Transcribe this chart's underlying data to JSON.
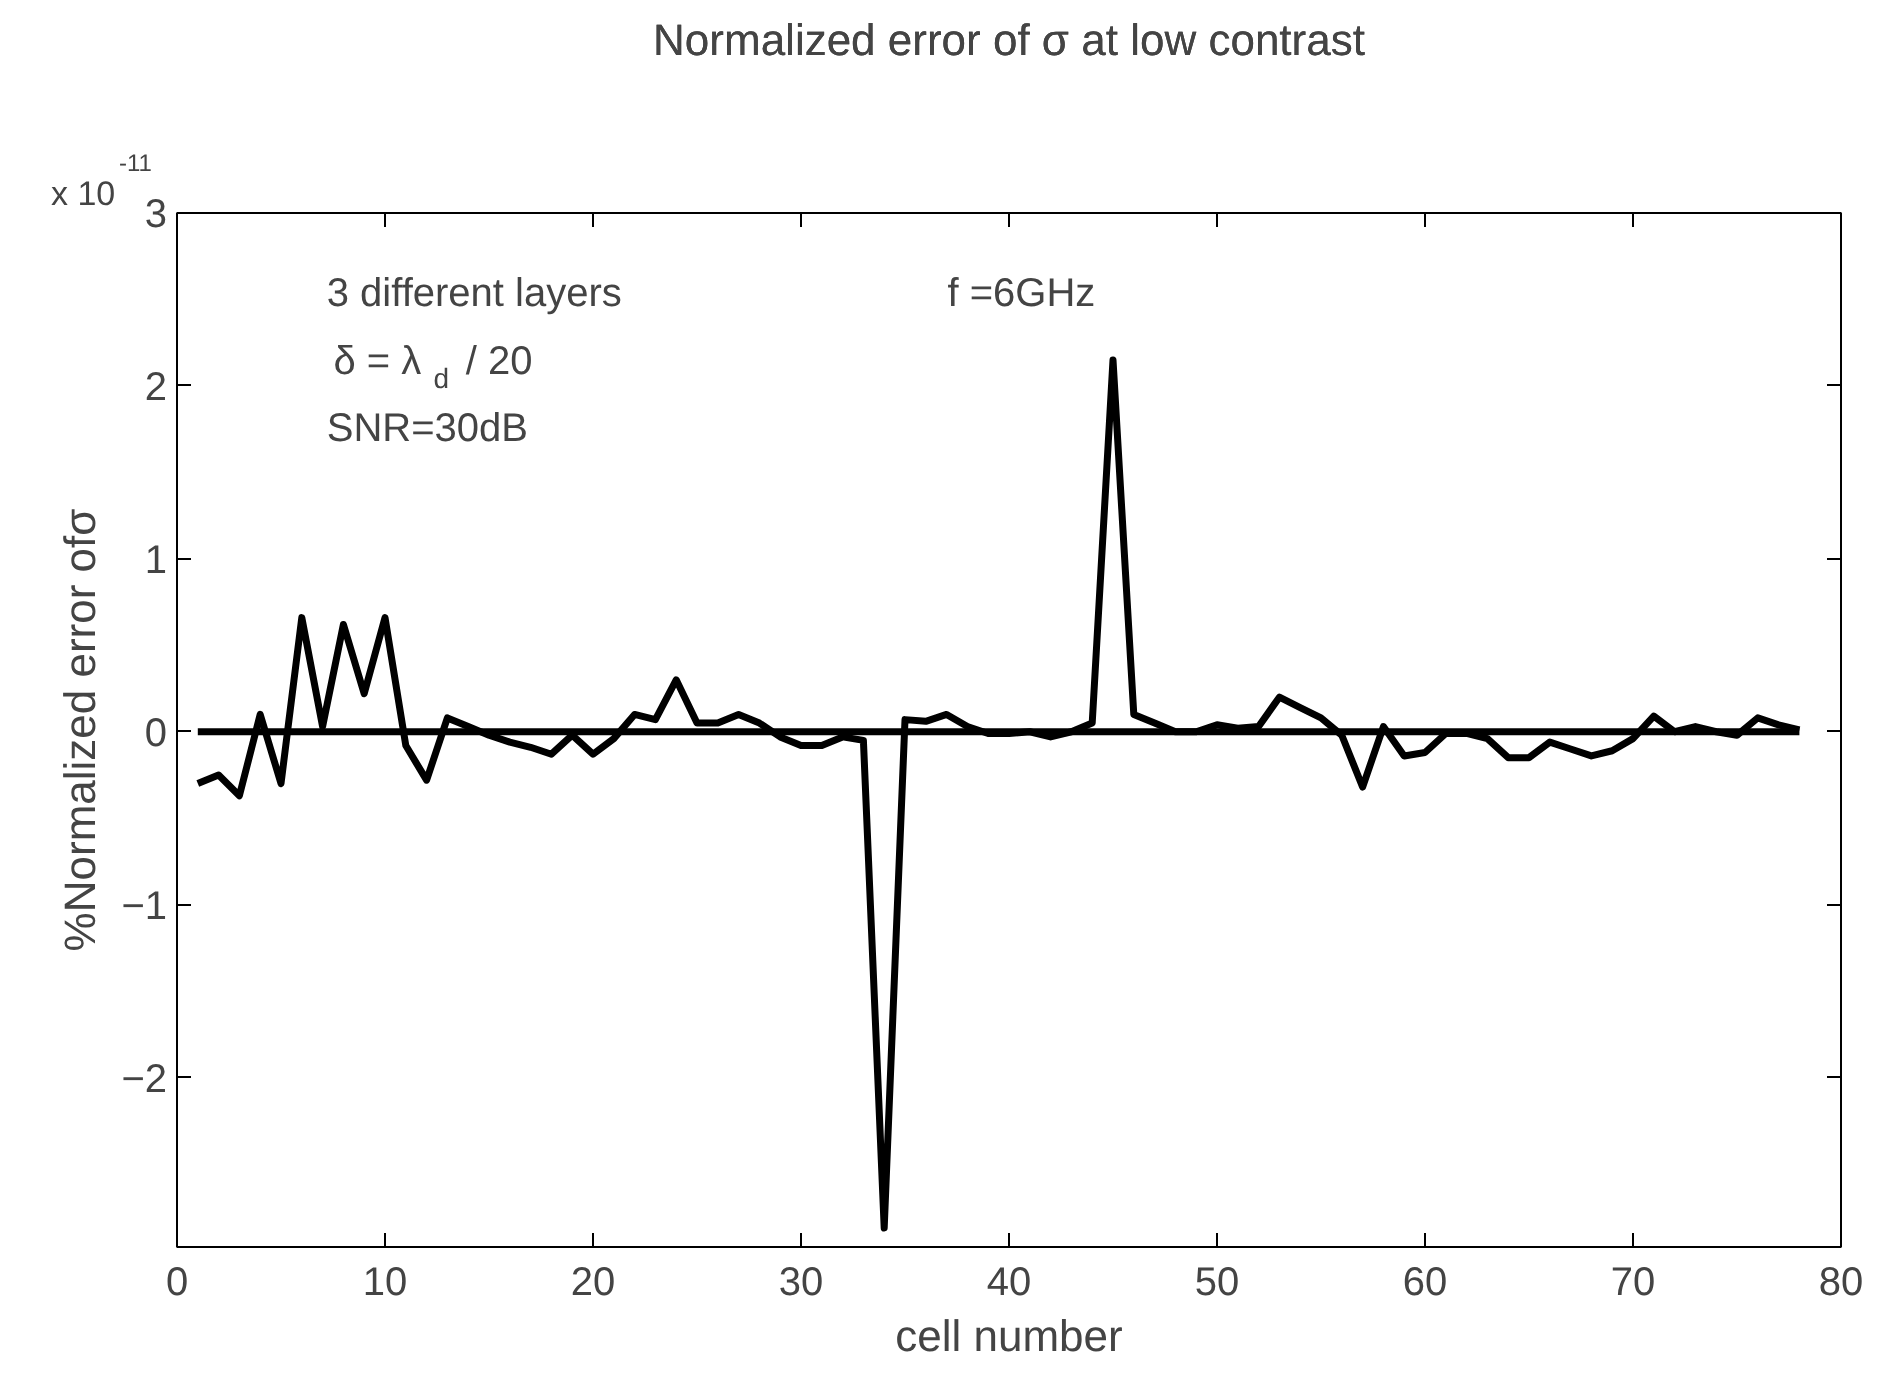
{
  "chart_data": {
    "type": "line",
    "title": "Normalized error of σ at low contrast",
    "xlabel": "cell number",
    "ylabel": "%Normalized error ofσ",
    "annotations": [
      "x 10$^{-11}$",
      "3 different layers",
      "δ = λ$_{d}$ / 20",
      "SNR=30dB",
      "f =6GHz"
    ],
    "series": [
      {
        "color": "#000000",
        "x": [
          1,
          2,
          3,
          4,
          5,
          6,
          7,
          8,
          9,
          10,
          11,
          12,
          13,
          14,
          15,
          16,
          17,
          18,
          19,
          20,
          21,
          22,
          23,
          24,
          25,
          26,
          27,
          28,
          29,
          30,
          31,
          32,
          33,
          34,
          35,
          36,
          37,
          38,
          39,
          40,
          41,
          42,
          43,
          44,
          45,
          46,
          47,
          48,
          49,
          50,
          51,
          52,
          53,
          54,
          55,
          56,
          57,
          58,
          59,
          60,
          61,
          62,
          63,
          64,
          65,
          66,
          67,
          68,
          69,
          70,
          71,
          72,
          73,
          74,
          75,
          76,
          77,
          78
        ],
        "values": [
          -0.3,
          -0.25,
          -0.37,
          0.1,
          -0.3,
          0.66,
          0.03,
          0.62,
          0.22,
          0.66,
          -0.08,
          -0.28,
          0.08,
          0.03,
          -0.02,
          -0.06,
          -0.09,
          -0.13,
          -0.02,
          -0.13,
          -0.04,
          0.1,
          0.07,
          0.3,
          0.05,
          0.05,
          0.1,
          0.05,
          -0.03,
          -0.08,
          -0.08,
          -0.03,
          -0.05,
          -2.87,
          0.07,
          0.06,
          0.1,
          0.03,
          -0.01,
          -0.01,
          0.0,
          -0.03,
          0.0,
          0.05,
          2.15,
          0.1,
          0.05,
          0.0,
          0.0,
          0.04,
          0.02,
          0.03,
          0.2,
          0.14,
          0.08,
          -0.02,
          -0.32,
          0.03,
          -0.14,
          -0.12,
          -0.01,
          -0.01,
          -0.04,
          -0.15,
          -0.15,
          -0.06,
          -0.1,
          -0.14,
          -0.11,
          -0.04,
          0.09,
          0.0,
          0.03,
          0.0,
          -0.02,
          0.08,
          0.04,
          0.01
        ]
      },
      {
        "color": "#000000",
        "x": [
          1,
          78
        ],
        "values": [
          0,
          0
        ]
      }
    ],
    "xlim": [
      0,
      80
    ],
    "xticks": [
      0,
      10,
      20,
      30,
      40,
      50,
      60,
      70,
      80
    ],
    "ylim": [
      -2.98,
      3
    ],
    "yticks": [
      -2,
      -1,
      0,
      1,
      2,
      3
    ],
    "grid": false,
    "marker": "none",
    "line_style": "solid"
  }
}
